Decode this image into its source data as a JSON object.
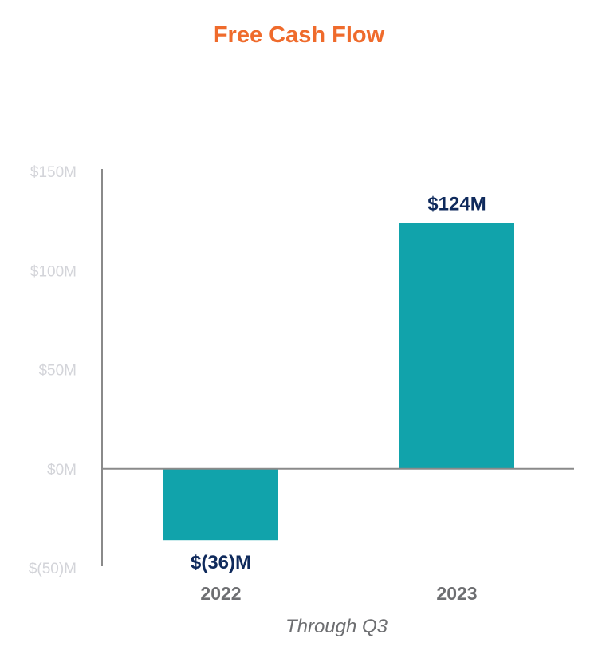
{
  "chart_data": {
    "type": "bar",
    "title": "Free Cash Flow",
    "xlabel": "Through Q3",
    "ylabel": "",
    "categories": [
      "2022",
      "2023"
    ],
    "values": [
      -36,
      124
    ],
    "data_labels": [
      "$(36)M",
      "$124M"
    ],
    "ylim": [
      -50,
      150
    ],
    "yticks": [
      150,
      100,
      50,
      0,
      -50
    ],
    "ytick_labels": [
      "$150M",
      "$100M",
      "$50M",
      "$0M",
      "$(50)M"
    ],
    "grid": false,
    "legend": "none",
    "bar_color": "#11a3ab"
  }
}
